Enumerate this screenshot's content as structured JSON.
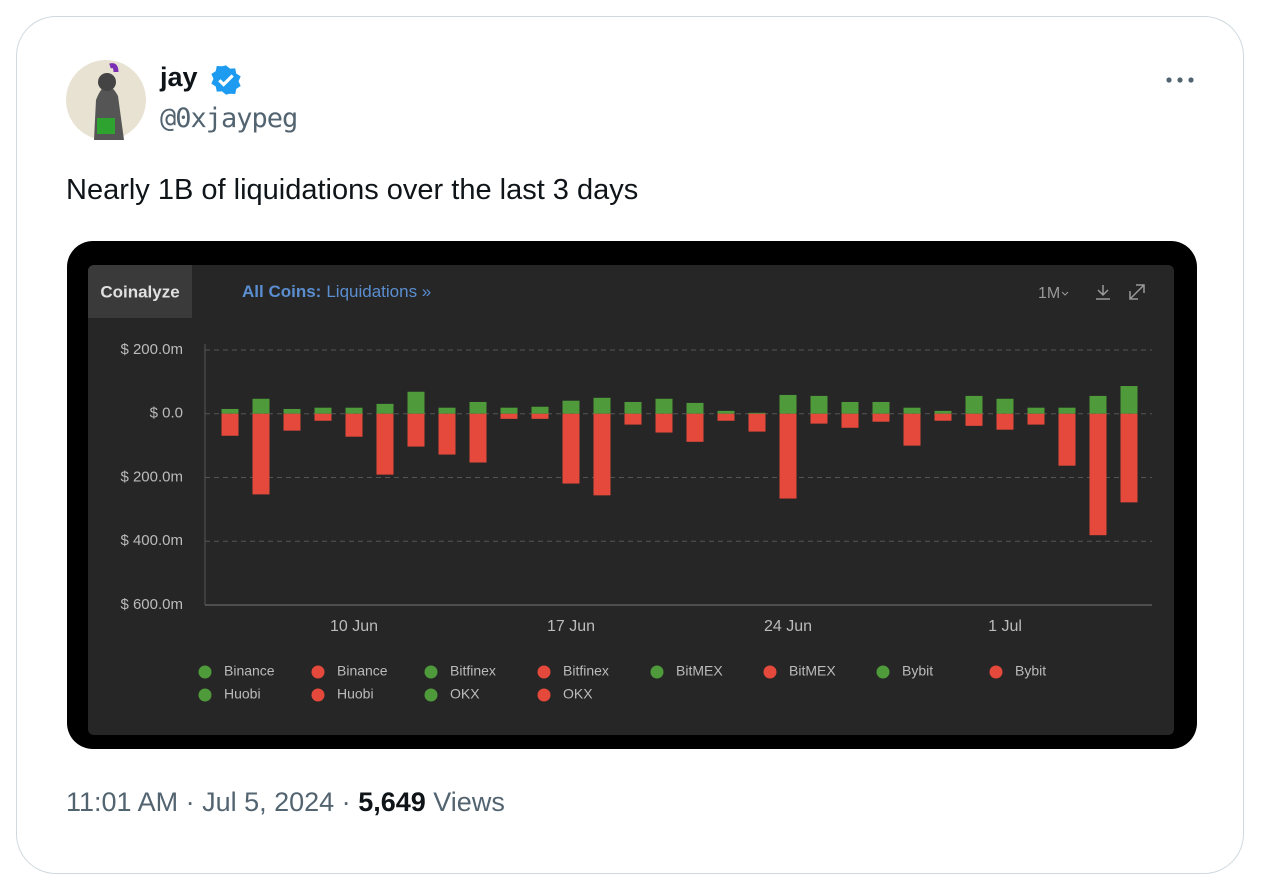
{
  "tweet": {
    "author": "jay",
    "handle": "@0xjaypeg",
    "text": "Nearly 1B of liquidations over the last 3 days",
    "timestamp": "11:01 AM · Jul 5, 2024 ·",
    "views": "5,649",
    "views_label": "Views"
  },
  "chart_data": {
    "type": "bar",
    "source": "Coinalyze",
    "title_prefix": "All Coins:",
    "title": "Liquidations »",
    "range_button": "1M",
    "categories": [
      null,
      null,
      null,
      null,
      "10 Jun",
      null,
      null,
      null,
      null,
      null,
      null,
      "17 Jun",
      null,
      null,
      null,
      null,
      null,
      null,
      "24 Jun",
      null,
      null,
      null,
      null,
      null,
      null,
      "1 Jul",
      null,
      null,
      null,
      null
    ],
    "series": [
      {
        "color": "#4f9a3b",
        "values": [
          15,
          47,
          15,
          19,
          19,
          31,
          69,
          19,
          37,
          19,
          22,
          41,
          50,
          37,
          47,
          34,
          9,
          3,
          59,
          56,
          37,
          37,
          19,
          9,
          56,
          47,
          19,
          19,
          56,
          87
        ]
      },
      {
        "color": "#e4493b",
        "values": [
          -69,
          -253,
          -53,
          -22,
          -72,
          -191,
          -103,
          -128,
          -153,
          -16,
          -16,
          -219,
          -256,
          -34,
          -59,
          -88,
          -22,
          -56,
          -266,
          -31,
          -44,
          -25,
          -100,
          -22,
          -38,
          -50,
          -34,
          -163,
          -381,
          -278
        ]
      }
    ],
    "ylim": [
      -600,
      200
    ],
    "yticks": [
      {
        "value": 200,
        "label": "$ 200.0m"
      },
      {
        "value": 0,
        "label": "$ 0.0"
      },
      {
        "value": -200,
        "label": "$ 200.0m"
      },
      {
        "value": -400,
        "label": "$ 400.0m"
      },
      {
        "value": -600,
        "label": "$ 600.0m"
      }
    ],
    "grid": true,
    "legend": [
      {
        "name": "Binance",
        "color": "#4f9a3b"
      },
      {
        "name": "Binance",
        "color": "#e4493b"
      },
      {
        "name": "Bitfinex",
        "color": "#4f9a3b"
      },
      {
        "name": "Bitfinex",
        "color": "#e4493b"
      },
      {
        "name": "BitMEX",
        "color": "#4f9a3b"
      },
      {
        "name": "BitMEX",
        "color": "#e4493b"
      },
      {
        "name": "Bybit",
        "color": "#4f9a3b"
      },
      {
        "name": "Bybit",
        "color": "#e4493b"
      },
      {
        "name": "Huobi",
        "color": "#4f9a3b"
      },
      {
        "name": "Huobi",
        "color": "#e4493b"
      },
      {
        "name": "OKX",
        "color": "#4f9a3b"
      },
      {
        "name": "OKX",
        "color": "#e4493b"
      }
    ]
  }
}
